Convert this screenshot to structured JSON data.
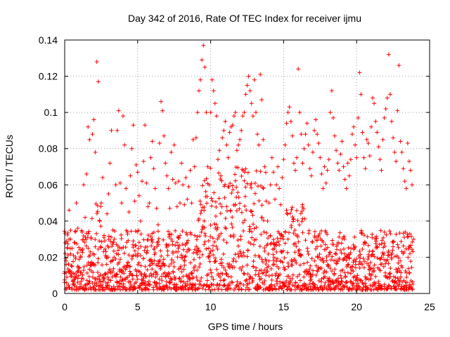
{
  "chart_data": {
    "type": "scatter",
    "title": "Day 342 of 2016, Rate Of TEC Index for receiver ijmu",
    "xlabel": "GPS time / hours",
    "ylabel": "ROTI / TECUs",
    "xlim": [
      0,
      25
    ],
    "ylim": [
      0,
      0.14
    ],
    "grid": true,
    "marker": "+",
    "colors": {
      "points": "#ff0000",
      "grid": "#a0a0a0",
      "axes": "#000000"
    },
    "x_ticks": [
      {
        "value": 0,
        "label": "0"
      },
      {
        "value": 5,
        "label": "5"
      },
      {
        "value": 10,
        "label": "10"
      },
      {
        "value": 15,
        "label": "15"
      },
      {
        "value": 20,
        "label": "20"
      },
      {
        "value": 25,
        "label": "25"
      }
    ],
    "y_ticks": [
      {
        "value": 0,
        "label": "0"
      },
      {
        "value": 0.02,
        "label": "0.02"
      },
      {
        "value": 0.04,
        "label": "0.04"
      },
      {
        "value": 0.06,
        "label": "0.06"
      },
      {
        "value": 0.08,
        "label": "0.08"
      },
      {
        "value": 0.1,
        "label": "0.1"
      },
      {
        "value": 0.12,
        "label": "0.12"
      },
      {
        "value": 0.14,
        "label": "0.14"
      }
    ],
    "series": [
      {
        "name": "ROTI",
        "points": [
          [
            0.0,
            0.012
          ],
          [
            0.1,
            0.018
          ],
          [
            0.2,
            0.025
          ],
          [
            0.3,
            0.046
          ],
          [
            0.4,
            0.03
          ],
          [
            0.5,
            0.015
          ],
          [
            0.6,
            0.021
          ],
          [
            0.7,
            0.028
          ],
          [
            0.8,
            0.05
          ],
          [
            0.9,
            0.036
          ],
          [
            1.0,
            0.014
          ],
          [
            1.1,
            0.02
          ],
          [
            1.2,
            0.034
          ],
          [
            1.3,
            0.06
          ],
          [
            1.4,
            0.042
          ],
          [
            1.5,
            0.066
          ],
          [
            1.6,
            0.092
          ],
          [
            1.7,
            0.085
          ],
          [
            1.8,
            0.031
          ],
          [
            1.9,
            0.088
          ],
          [
            2.0,
            0.096
          ],
          [
            2.1,
            0.078
          ],
          [
            2.2,
            0.128
          ],
          [
            2.3,
            0.117
          ],
          [
            2.4,
            0.04
          ],
          [
            2.5,
            0.05
          ],
          [
            2.6,
            0.064
          ],
          [
            2.7,
            0.032
          ],
          [
            2.8,
            0.021
          ],
          [
            2.9,
            0.044
          ],
          [
            3.0,
            0.055
          ],
          [
            3.1,
            0.072
          ],
          [
            3.2,
            0.09
          ],
          [
            3.3,
            0.035
          ],
          [
            3.4,
            0.03
          ],
          [
            3.5,
            0.06
          ],
          [
            3.6,
            0.09
          ],
          [
            3.7,
            0.101
          ],
          [
            3.8,
            0.061
          ],
          [
            3.9,
            0.05
          ],
          [
            4.0,
            0.098
          ],
          [
            4.1,
            0.082
          ],
          [
            4.2,
            0.058
          ],
          [
            4.3,
            0.034
          ],
          [
            4.4,
            0.045
          ],
          [
            4.5,
            0.065
          ],
          [
            4.6,
            0.08
          ],
          [
            4.7,
            0.093
          ],
          [
            4.8,
            0.051
          ],
          [
            4.9,
            0.071
          ],
          [
            5.0,
            0.067
          ],
          [
            5.1,
            0.054
          ],
          [
            5.2,
            0.04
          ],
          [
            5.3,
            0.062
          ],
          [
            5.4,
            0.073
          ],
          [
            5.5,
            0.093
          ],
          [
            5.6,
            0.061
          ],
          [
            5.7,
            0.048
          ],
          [
            5.8,
            0.05
          ],
          [
            5.9,
            0.075
          ],
          [
            6.0,
            0.084
          ],
          [
            6.1,
            0.069
          ],
          [
            6.2,
            0.058
          ],
          [
            6.3,
            0.047
          ],
          [
            6.4,
            0.038
          ],
          [
            6.5,
            0.083
          ],
          [
            6.6,
            0.106
          ],
          [
            6.7,
            0.101
          ],
          [
            6.8,
            0.087
          ],
          [
            6.9,
            0.072
          ],
          [
            7.0,
            0.065
          ],
          [
            7.1,
            0.058
          ],
          [
            7.2,
            0.047
          ],
          [
            7.3,
            0.078
          ],
          [
            7.4,
            0.063
          ],
          [
            7.5,
            0.082
          ],
          [
            7.6,
            0.061
          ],
          [
            7.7,
            0.048
          ],
          [
            7.8,
            0.062
          ],
          [
            7.9,
            0.05
          ],
          [
            8.0,
            0.072
          ],
          [
            8.1,
            0.06
          ],
          [
            8.2,
            0.049
          ],
          [
            8.3,
            0.064
          ],
          [
            8.4,
            0.052
          ],
          [
            8.5,
            0.059
          ],
          [
            8.6,
            0.068
          ],
          [
            8.7,
            0.05
          ],
          [
            8.8,
            0.085
          ],
          [
            8.9,
            0.07
          ],
          [
            9.0,
            0.086
          ],
          [
            9.1,
            0.1
          ],
          [
            9.2,
            0.112
          ],
          [
            9.3,
            0.118
          ],
          [
            9.4,
            0.129
          ],
          [
            9.5,
            0.137
          ],
          [
            9.6,
            0.125
          ],
          [
            9.7,
            0.1
          ],
          [
            9.8,
            0.07
          ],
          [
            9.9,
            0.06
          ],
          [
            10.0,
            0.1
          ],
          [
            10.1,
            0.118
          ],
          [
            10.2,
            0.112
          ],
          [
            10.3,
            0.105
          ],
          [
            10.4,
            0.098
          ],
          [
            10.5,
            0.074
          ],
          [
            10.6,
            0.079
          ],
          [
            10.7,
            0.065
          ],
          [
            10.8,
            0.086
          ],
          [
            10.9,
            0.09
          ],
          [
            11.0,
            0.095
          ],
          [
            11.1,
            0.082
          ],
          [
            11.2,
            0.075
          ],
          [
            11.3,
            0.089
          ],
          [
            11.4,
            0.092
          ],
          [
            11.5,
            0.093
          ],
          [
            11.6,
            0.098
          ],
          [
            11.7,
            0.1
          ],
          [
            11.8,
            0.079
          ],
          [
            11.9,
            0.082
          ],
          [
            12.0,
            0.085
          ],
          [
            12.1,
            0.09
          ],
          [
            12.2,
            0.098
          ],
          [
            12.3,
            0.1
          ],
          [
            12.4,
            0.11
          ],
          [
            12.5,
            0.115
          ],
          [
            12.6,
            0.12
          ],
          [
            12.7,
            0.112
          ],
          [
            12.8,
            0.105
          ],
          [
            12.9,
            0.098
          ],
          [
            13.0,
            0.118
          ],
          [
            13.1,
            0.1
          ],
          [
            13.2,
            0.088
          ],
          [
            13.3,
            0.082
          ],
          [
            13.4,
            0.121
          ],
          [
            13.5,
            0.107
          ],
          [
            13.6,
            0.085
          ],
          [
            13.7,
            0.07
          ],
          [
            13.8,
            0.051
          ],
          [
            13.9,
            0.04
          ],
          [
            14.0,
            0.05
          ],
          [
            14.1,
            0.06
          ],
          [
            14.2,
            0.075
          ],
          [
            14.3,
            0.067
          ],
          [
            14.4,
            0.052
          ],
          [
            14.5,
            0.06
          ],
          [
            14.6,
            0.07
          ],
          [
            14.7,
            0.058
          ],
          [
            14.8,
            0.049
          ],
          [
            14.9,
            0.064
          ],
          [
            15.0,
            0.074
          ],
          [
            15.1,
            0.082
          ],
          [
            15.2,
            0.094
          ],
          [
            15.3,
            0.1
          ],
          [
            15.4,
            0.103
          ],
          [
            15.5,
            0.095
          ],
          [
            15.6,
            0.087
          ],
          [
            15.7,
            0.072
          ],
          [
            15.8,
            0.068
          ],
          [
            15.9,
            0.075
          ],
          [
            16.0,
            0.124
          ],
          [
            16.1,
            0.1
          ],
          [
            16.2,
            0.088
          ],
          [
            16.3,
            0.072
          ],
          [
            16.4,
            0.08
          ],
          [
            16.5,
            0.088
          ],
          [
            16.6,
            0.094
          ],
          [
            16.7,
            0.082
          ],
          [
            16.8,
            0.069
          ],
          [
            16.9,
            0.065
          ],
          [
            17.0,
            0.078
          ],
          [
            17.1,
            0.09
          ],
          [
            17.2,
            0.096
          ],
          [
            17.3,
            0.088
          ],
          [
            17.4,
            0.083
          ],
          [
            17.5,
            0.075
          ],
          [
            17.6,
            0.066
          ],
          [
            17.7,
            0.058
          ],
          [
            17.8,
            0.07
          ],
          [
            17.9,
            0.061
          ],
          [
            18.0,
            0.068
          ],
          [
            18.1,
            0.074
          ],
          [
            18.2,
            0.1
          ],
          [
            18.3,
            0.112
          ],
          [
            18.4,
            0.097
          ],
          [
            18.5,
            0.087
          ],
          [
            18.6,
            0.079
          ],
          [
            18.7,
            0.072
          ],
          [
            18.8,
            0.068
          ],
          [
            18.9,
            0.077
          ],
          [
            19.0,
            0.084
          ],
          [
            19.1,
            0.07
          ],
          [
            19.2,
            0.063
          ],
          [
            19.3,
            0.058
          ],
          [
            19.4,
            0.072
          ],
          [
            19.5,
            0.065
          ],
          [
            19.6,
            0.074
          ],
          [
            19.7,
            0.088
          ],
          [
            19.8,
            0.092
          ],
          [
            19.9,
            0.082
          ],
          [
            20.0,
            0.075
          ],
          [
            20.1,
            0.097
          ],
          [
            20.2,
            0.122
          ],
          [
            20.3,
            0.11
          ],
          [
            20.4,
            0.089
          ],
          [
            20.5,
            0.075
          ],
          [
            20.6,
            0.069
          ],
          [
            20.7,
            0.085
          ],
          [
            20.8,
            0.083
          ],
          [
            20.9,
            0.076
          ],
          [
            21.0,
            0.092
          ],
          [
            21.1,
            0.108
          ],
          [
            21.2,
            0.105
          ],
          [
            21.3,
            0.095
          ],
          [
            21.4,
            0.089
          ],
          [
            21.5,
            0.081
          ],
          [
            21.6,
            0.074
          ],
          [
            21.7,
            0.068
          ],
          [
            21.8,
            0.085
          ],
          [
            21.9,
            0.097
          ],
          [
            22.0,
            0.102
          ],
          [
            22.1,
            0.108
          ],
          [
            22.2,
            0.132
          ],
          [
            22.3,
            0.11
          ],
          [
            22.4,
            0.095
          ],
          [
            22.5,
            0.086
          ],
          [
            22.6,
            0.078
          ],
          [
            22.7,
            0.073
          ],
          [
            22.8,
            0.101
          ],
          [
            22.9,
            0.126
          ],
          [
            23.0,
            0.084
          ],
          [
            23.1,
            0.078
          ],
          [
            23.2,
            0.069
          ],
          [
            23.3,
            0.062
          ],
          [
            23.4,
            0.058
          ],
          [
            23.5,
            0.083
          ],
          [
            23.6,
            0.073
          ],
          [
            23.7,
            0.068
          ],
          [
            23.8,
            0.06
          ],
          [
            23.9,
            0.03
          ]
        ],
        "baseline_band": {
          "x_start": 0,
          "x_end": 23.9,
          "x_step": 0.08,
          "per_x": 6,
          "y_min": 0.002,
          "y_max": 0.035,
          "elevated_windows": [
            {
              "x_start": 9.2,
              "x_end": 13.8,
              "y_max": 0.07
            },
            {
              "x_start": 15.2,
              "x_end": 16.6,
              "y_max": 0.05
            },
            {
              "x_start": 1.8,
              "x_end": 2.6,
              "y_max": 0.05
            }
          ]
        }
      }
    ]
  }
}
